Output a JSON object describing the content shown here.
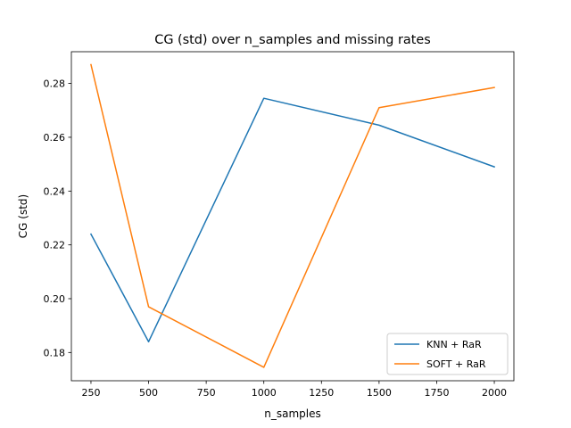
{
  "chart_data": {
    "type": "line",
    "title": "CG (std) over n_samples and missing rates",
    "xlabel": "n_samples",
    "ylabel": "CG (std)",
    "xlim": [
      165,
      2085
    ],
    "ylim": [
      0.1695,
      0.2918
    ],
    "xticks": [
      250,
      500,
      750,
      1000,
      1250,
      1500,
      1750,
      2000
    ],
    "yticks": [
      0.18,
      0.2,
      0.22,
      0.24,
      0.26,
      0.28
    ],
    "ytick_labels": [
      "0.18",
      "0.20",
      "0.22",
      "0.24",
      "0.26",
      "0.28"
    ],
    "grid": false,
    "legend_position": "lower-right",
    "x": [
      250,
      500,
      1000,
      1500,
      2000
    ],
    "series": [
      {
        "name": "KNN + RaR",
        "color": "#1f77b4",
        "values": [
          0.224,
          0.184,
          0.2745,
          0.2645,
          0.249
        ]
      },
      {
        "name": "SOFT + RaR",
        "color": "#ff7f0e",
        "values": [
          0.287,
          0.197,
          0.1745,
          0.271,
          0.2785
        ]
      }
    ]
  }
}
